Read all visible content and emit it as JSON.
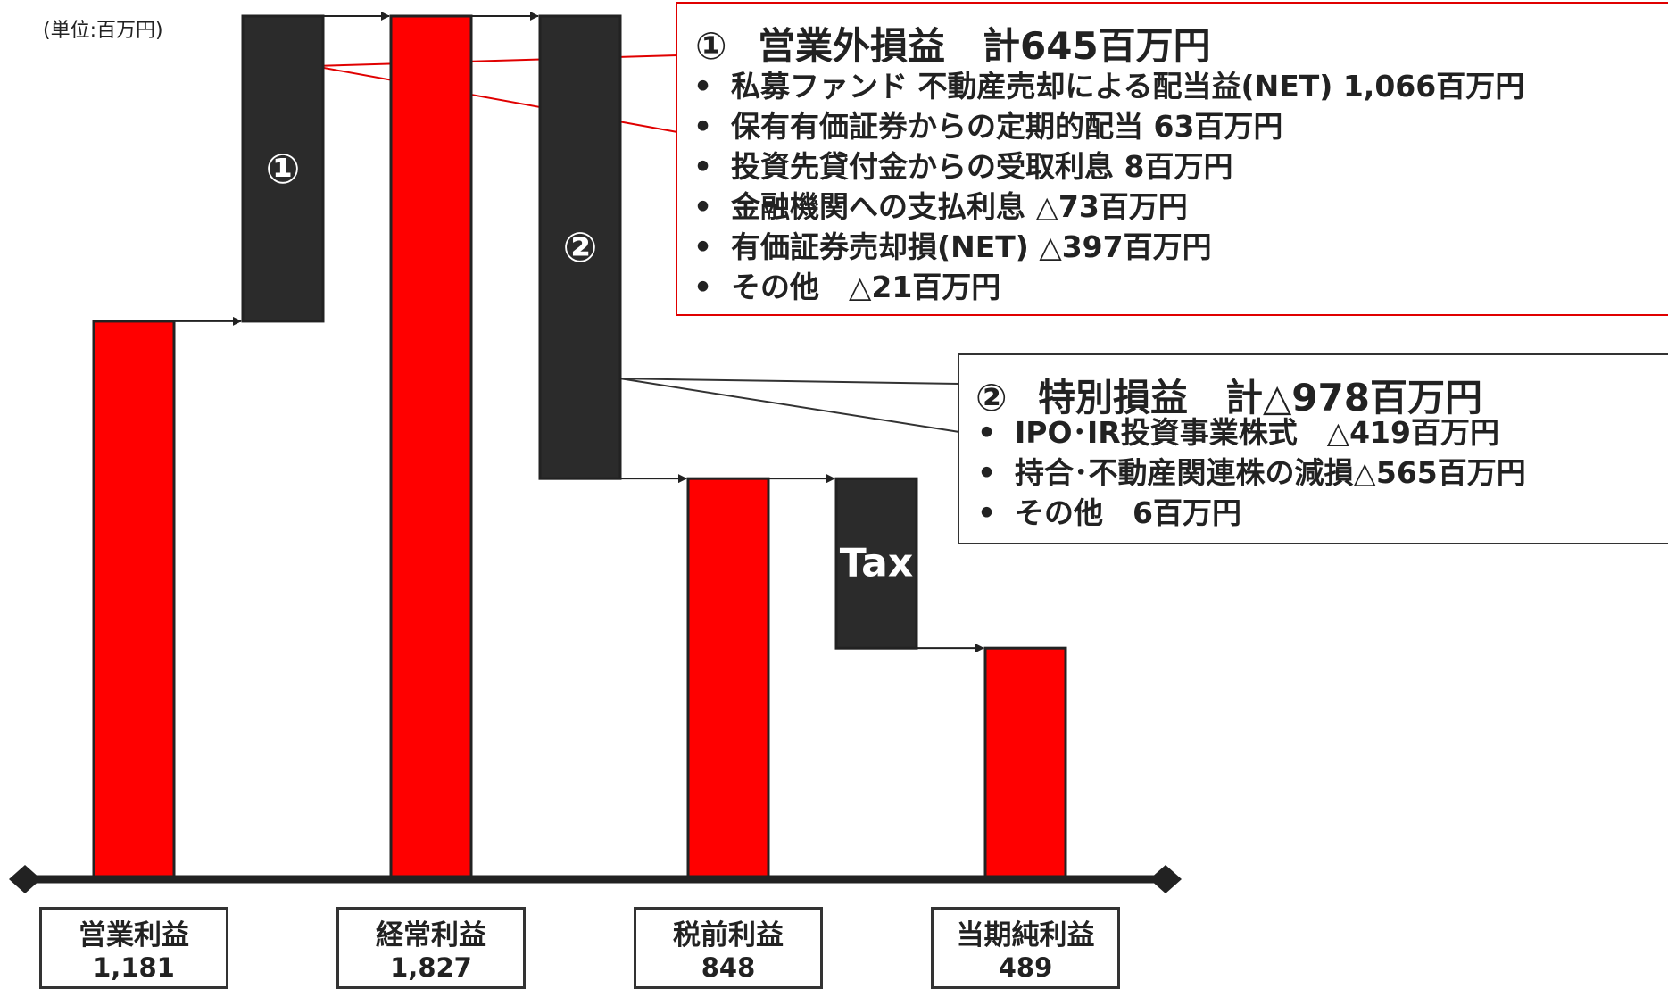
{
  "unit_label": "(単位:百万円)",
  "box1": {
    "number": "①",
    "title": "営業外損益　計645百万円",
    "items": [
      "私募ファンド 不動産売却による配当益(NET) 1,066百万円",
      "保有有価証券からの定期的配当 63百万円",
      "投資先貸付金からの受取利息 8百万円",
      "金融機関への支払利息 △73百万円",
      "有価証券売却損(NET) △397百万円",
      "その他　△21百万円"
    ]
  },
  "box2": {
    "number": "②",
    "title": "特別損益　計△978百万円",
    "items": [
      "IPO･IR投資事業株式　△419百万円",
      "持合･不動産関連株の減損△565百万円",
      "その他　6百万円"
    ]
  },
  "bullet": "•",
  "colors": {
    "bar_total": "#ff0000",
    "bar_step": "#2b2b2b",
    "callout1_border": "#e00000",
    "axis": "#222222"
  },
  "chart_data": {
    "type": "bar",
    "subtype": "waterfall",
    "categories": [
      "営業利益",
      "①",
      "経常利益",
      "②",
      "税前利益",
      "Tax",
      "当期純利益"
    ],
    "bars": [
      {
        "label": "営業利益",
        "kind": "total",
        "value": 1181,
        "value_label": "1,181"
      },
      {
        "label": "①",
        "kind": "step",
        "from": 1181,
        "to": 1827
      },
      {
        "label": "経常利益",
        "kind": "total",
        "value": 1827,
        "value_label": "1,827"
      },
      {
        "label": "②",
        "kind": "step",
        "from": 1827,
        "to": 848
      },
      {
        "label": "税前利益",
        "kind": "total",
        "value": 848,
        "value_label": "848"
      },
      {
        "label": "Tax",
        "kind": "step",
        "from": 848,
        "to": 489
      },
      {
        "label": "当期純利益",
        "kind": "total",
        "value": 489,
        "value_label": "489"
      }
    ],
    "ylim": [
      0,
      1827
    ]
  }
}
